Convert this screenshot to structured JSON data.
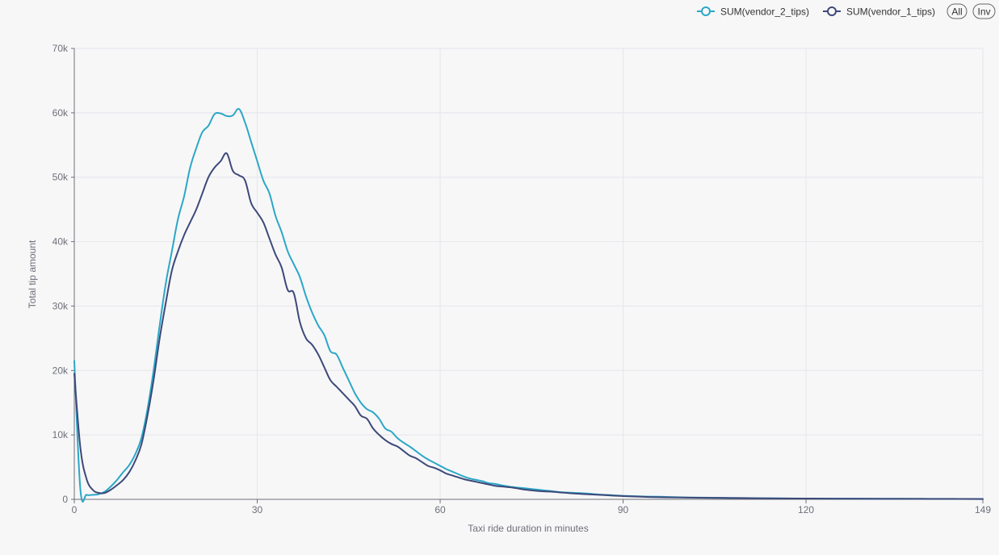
{
  "chart_data": {
    "type": "line",
    "xlabel": "Taxi ride duration in minutes",
    "ylabel": "Total tip amount",
    "xlim": [
      0,
      149
    ],
    "ylim": [
      0,
      70000
    ],
    "x_ticks": [
      0,
      30,
      60,
      90,
      120,
      149
    ],
    "x_tick_labels": [
      "0",
      "30",
      "60",
      "90",
      "120",
      "149"
    ],
    "y_ticks": [
      0,
      10000,
      20000,
      30000,
      40000,
      50000,
      60000,
      70000
    ],
    "y_tick_labels": [
      "0",
      "10k",
      "20k",
      "30k",
      "40k",
      "50k",
      "60k",
      "70k"
    ],
    "grid": true,
    "legend": {
      "position": "top-right",
      "buttons": [
        "All",
        "Inv"
      ]
    },
    "series": [
      {
        "name": "SUM(vendor_2_tips)",
        "color": "#2ba7c7",
        "points": [
          [
            0,
            21500
          ],
          [
            1,
            1500
          ],
          [
            2,
            700
          ],
          [
            3,
            700
          ],
          [
            4,
            800
          ],
          [
            5,
            1200
          ],
          [
            6,
            2000
          ],
          [
            7,
            3000
          ],
          [
            8,
            4200
          ],
          [
            9,
            5300
          ],
          [
            10,
            7000
          ],
          [
            11,
            9500
          ],
          [
            12,
            14000
          ],
          [
            13,
            20000
          ],
          [
            14,
            27000
          ],
          [
            15,
            33500
          ],
          [
            16,
            38500
          ],
          [
            17,
            43500
          ],
          [
            18,
            47000
          ],
          [
            19,
            51500
          ],
          [
            20,
            54500
          ],
          [
            21,
            57000
          ],
          [
            22,
            58000
          ],
          [
            23,
            59800
          ],
          [
            24,
            59900
          ],
          [
            25,
            59500
          ],
          [
            26,
            59600
          ],
          [
            27,
            60600
          ],
          [
            28,
            58500
          ],
          [
            29,
            55500
          ],
          [
            30,
            52500
          ],
          [
            31,
            49500
          ],
          [
            32,
            47500
          ],
          [
            33,
            44000
          ],
          [
            34,
            41500
          ],
          [
            35,
            38500
          ],
          [
            36,
            36500
          ],
          [
            37,
            34500
          ],
          [
            38,
            31500
          ],
          [
            39,
            29000
          ],
          [
            40,
            27000
          ],
          [
            41,
            25500
          ],
          [
            42,
            23000
          ],
          [
            43,
            22500
          ],
          [
            44,
            20500
          ],
          [
            45,
            18500
          ],
          [
            46,
            16500
          ],
          [
            47,
            15000
          ],
          [
            48,
            14000
          ],
          [
            49,
            13500
          ],
          [
            50,
            12500
          ],
          [
            51,
            11000
          ],
          [
            52,
            10500
          ],
          [
            53,
            9500
          ],
          [
            54,
            8800
          ],
          [
            55,
            8200
          ],
          [
            56,
            7500
          ],
          [
            57,
            6800
          ],
          [
            58,
            6200
          ],
          [
            59,
            5700
          ],
          [
            60,
            5200
          ],
          [
            61,
            4700
          ],
          [
            62,
            4300
          ],
          [
            63,
            3900
          ],
          [
            64,
            3500
          ],
          [
            65,
            3200
          ],
          [
            66,
            3000
          ],
          [
            67,
            2800
          ],
          [
            68,
            2500
          ],
          [
            69,
            2400
          ],
          [
            70,
            2200
          ],
          [
            72,
            1900
          ],
          [
            74,
            1700
          ],
          [
            76,
            1500
          ],
          [
            78,
            1300
          ],
          [
            80,
            1100
          ],
          [
            82,
            1000
          ],
          [
            84,
            900
          ],
          [
            86,
            750
          ],
          [
            88,
            650
          ],
          [
            90,
            550
          ],
          [
            93,
            450
          ],
          [
            96,
            400
          ],
          [
            100,
            300
          ],
          [
            105,
            250
          ],
          [
            110,
            200
          ],
          [
            115,
            150
          ],
          [
            120,
            130
          ],
          [
            125,
            110
          ],
          [
            130,
            100
          ],
          [
            135,
            90
          ],
          [
            140,
            80
          ],
          [
            145,
            70
          ],
          [
            149,
            60
          ]
        ]
      },
      {
        "name": "SUM(vendor_1_tips)",
        "color": "#3d4979",
        "points": [
          [
            0,
            19500
          ],
          [
            1,
            8000
          ],
          [
            2,
            3200
          ],
          [
            3,
            1500
          ],
          [
            4,
            1000
          ],
          [
            5,
            1000
          ],
          [
            6,
            1500
          ],
          [
            7,
            2200
          ],
          [
            8,
            3000
          ],
          [
            9,
            4200
          ],
          [
            10,
            6000
          ],
          [
            11,
            8500
          ],
          [
            12,
            13000
          ],
          [
            13,
            18500
          ],
          [
            14,
            25000
          ],
          [
            15,
            30500
          ],
          [
            16,
            35500
          ],
          [
            17,
            38500
          ],
          [
            18,
            41000
          ],
          [
            19,
            43000
          ],
          [
            20,
            45000
          ],
          [
            21,
            47500
          ],
          [
            22,
            50000
          ],
          [
            23,
            51500
          ],
          [
            24,
            52500
          ],
          [
            25,
            53700
          ],
          [
            26,
            51000
          ],
          [
            27,
            50300
          ],
          [
            28,
            49500
          ],
          [
            29,
            46000
          ],
          [
            30,
            44500
          ],
          [
            31,
            43000
          ],
          [
            32,
            40500
          ],
          [
            33,
            38000
          ],
          [
            34,
            36000
          ],
          [
            35,
            32500
          ],
          [
            36,
            32000
          ],
          [
            37,
            27500
          ],
          [
            38,
            25000
          ],
          [
            39,
            24000
          ],
          [
            40,
            22500
          ],
          [
            41,
            20500
          ],
          [
            42,
            18500
          ],
          [
            43,
            17500
          ],
          [
            44,
            16500
          ],
          [
            45,
            15500
          ],
          [
            46,
            14500
          ],
          [
            47,
            13000
          ],
          [
            48,
            12500
          ],
          [
            49,
            11000
          ],
          [
            50,
            10000
          ],
          [
            51,
            9200
          ],
          [
            52,
            8600
          ],
          [
            53,
            8200
          ],
          [
            54,
            7500
          ],
          [
            55,
            6800
          ],
          [
            56,
            6400
          ],
          [
            57,
            5800
          ],
          [
            58,
            5200
          ],
          [
            59,
            4900
          ],
          [
            60,
            4500
          ],
          [
            61,
            4000
          ],
          [
            62,
            3700
          ],
          [
            63,
            3400
          ],
          [
            64,
            3100
          ],
          [
            65,
            2900
          ],
          [
            66,
            2700
          ],
          [
            67,
            2500
          ],
          [
            68,
            2300
          ],
          [
            69,
            2100
          ],
          [
            70,
            2000
          ],
          [
            72,
            1800
          ],
          [
            74,
            1500
          ],
          [
            76,
            1300
          ],
          [
            78,
            1200
          ],
          [
            80,
            1050
          ],
          [
            82,
            900
          ],
          [
            84,
            800
          ],
          [
            86,
            700
          ],
          [
            88,
            600
          ],
          [
            90,
            500
          ],
          [
            93,
            400
          ],
          [
            96,
            330
          ],
          [
            100,
            280
          ],
          [
            105,
            220
          ],
          [
            110,
            180
          ],
          [
            115,
            140
          ],
          [
            120,
            120
          ],
          [
            125,
            100
          ],
          [
            130,
            90
          ],
          [
            135,
            80
          ],
          [
            140,
            70
          ],
          [
            145,
            60
          ],
          [
            149,
            50
          ]
        ]
      }
    ]
  }
}
